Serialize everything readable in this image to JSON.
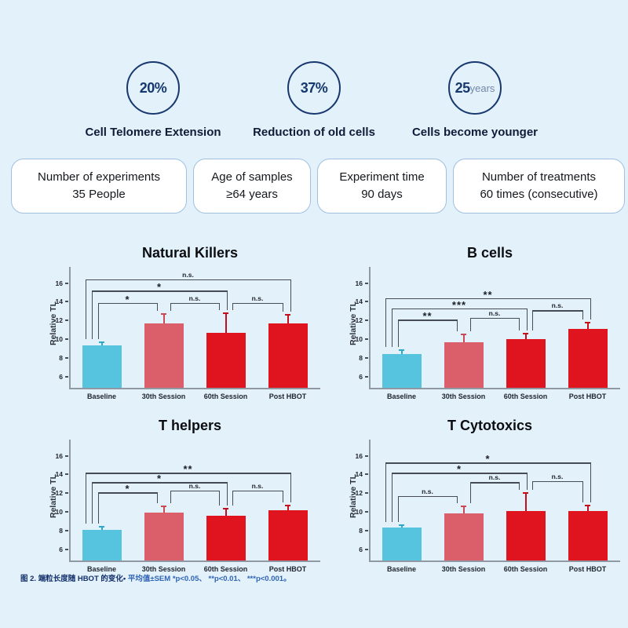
{
  "page": {
    "background": "#e3f1fb"
  },
  "stats": {
    "circle_border_color": "#16386e",
    "items": [
      {
        "value": "20%",
        "suffix": "",
        "label": "Cell Telomere Extension"
      },
      {
        "value": "37%",
        "suffix": "",
        "label": "Reduction of old cells"
      },
      {
        "value": "25",
        "suffix": "years",
        "label": "Cells become younger"
      }
    ]
  },
  "cards": [
    {
      "title": "Number of experiments",
      "value": "35 People"
    },
    {
      "title": "Age of samples",
      "value": "≥64 years"
    },
    {
      "title": "Experiment time",
      "value": "90 days"
    },
    {
      "title": "Number of treatments",
      "value": "60 times (consecutive)"
    }
  ],
  "chart_style": {
    "bar_colors": [
      "#56c3df",
      "#da5f6a",
      "#e0141f",
      "#e0141f"
    ],
    "err_colors": [
      "#2fa9cb",
      "#c94955",
      "#c40f1b",
      "#c40f1b"
    ],
    "axis_color": "#9099a3",
    "bracket_color": "#454c55"
  },
  "chart_data": [
    {
      "type": "bar",
      "title": "Natural Killers",
      "ylabel": "Relative TL",
      "categories": [
        "Baseline",
        "30th Session",
        "60th Session",
        "Post HBOT"
      ],
      "values": [
        9.3,
        11.7,
        10.7,
        11.7
      ],
      "sem": [
        0.35,
        1.0,
        2.1,
        0.95
      ],
      "yticks": [
        6,
        8,
        10,
        12,
        14,
        16
      ],
      "ylim": [
        4.8,
        17.4
      ],
      "grid": false,
      "significance": [
        {
          "pair": [
            0,
            1
          ],
          "label": "*",
          "y": 13.9,
          "dx_from": -5,
          "dx_to": -8
        },
        {
          "pair": [
            1,
            2
          ],
          "label": "n.s.",
          "y": 13.9,
          "dx_from": 8,
          "dx_to": -8
        },
        {
          "pair": [
            2,
            3
          ],
          "label": "n.s.",
          "y": 13.9,
          "dx_from": 8,
          "dx_to": -6
        },
        {
          "pair": [
            0,
            2
          ],
          "label": "*",
          "y": 15.2,
          "dx_from": -13,
          "dx_to": 2
        },
        {
          "pair": [
            0,
            3
          ],
          "label": "n.s.",
          "y": 16.4,
          "dx_from": -21,
          "dx_to": 4
        }
      ]
    },
    {
      "type": "bar",
      "title": "B cells",
      "ylabel": "Relative TL",
      "categories": [
        "Baseline",
        "30th Session",
        "60th Session",
        "Post HBOT"
      ],
      "values": [
        8.4,
        9.7,
        10.0,
        11.1
      ],
      "sem": [
        0.4,
        0.8,
        0.6,
        0.7
      ],
      "yticks": [
        6,
        8,
        10,
        12,
        14,
        16
      ],
      "ylim": [
        4.8,
        17.4
      ],
      "grid": false,
      "significance": [
        {
          "pair": [
            0,
            1
          ],
          "label": "**",
          "y": 12.1,
          "dx_from": -5,
          "dx_to": -8
        },
        {
          "pair": [
            1,
            2
          ],
          "label": "n.s.",
          "y": 12.3,
          "dx_from": 8,
          "dx_to": -8
        },
        {
          "pair": [
            2,
            3
          ],
          "label": "n.s.",
          "y": 13.1,
          "dx_from": 8,
          "dx_to": -6
        },
        {
          "pair": [
            0,
            2
          ],
          "label": "***",
          "y": 13.3,
          "dx_from": -13,
          "dx_to": 2
        },
        {
          "pair": [
            0,
            3
          ],
          "label": "**",
          "y": 14.4,
          "dx_from": -21,
          "dx_to": 4
        }
      ]
    },
    {
      "type": "bar",
      "title": "T helpers",
      "ylabel": "Relative TL",
      "categories": [
        "Baseline",
        "30th Session",
        "60th Session",
        "Post HBOT"
      ],
      "values": [
        8.1,
        9.9,
        9.6,
        10.2
      ],
      "sem": [
        0.35,
        0.7,
        0.75,
        0.5
      ],
      "yticks": [
        6,
        8,
        10,
        12,
        14,
        16
      ],
      "ylim": [
        4.8,
        17.4
      ],
      "grid": false,
      "significance": [
        {
          "pair": [
            0,
            1
          ],
          "label": "*",
          "y": 12.1,
          "dx_from": -5,
          "dx_to": -8
        },
        {
          "pair": [
            1,
            2
          ],
          "label": "n.s.",
          "y": 12.3,
          "dx_from": 8,
          "dx_to": -8
        },
        {
          "pair": [
            2,
            3
          ],
          "label": "n.s.",
          "y": 12.3,
          "dx_from": 8,
          "dx_to": -6
        },
        {
          "pair": [
            0,
            2
          ],
          "label": "*",
          "y": 13.2,
          "dx_from": -13,
          "dx_to": 2
        },
        {
          "pair": [
            0,
            3
          ],
          "label": "**",
          "y": 14.2,
          "dx_from": -21,
          "dx_to": 4
        }
      ]
    },
    {
      "type": "bar",
      "title": "T Cytotoxics",
      "ylabel": "Relative TL",
      "categories": [
        "Baseline",
        "30th Session",
        "60th Session",
        "Post HBOT"
      ],
      "values": [
        8.3,
        9.8,
        10.1,
        10.1
      ],
      "sem": [
        0.3,
        0.8,
        1.9,
        0.6
      ],
      "yticks": [
        6,
        8,
        10,
        12,
        14,
        16
      ],
      "ylim": [
        4.8,
        17.4
      ],
      "grid": false,
      "significance": [
        {
          "pair": [
            0,
            1
          ],
          "label": "n.s.",
          "y": 11.7,
          "dx_from": -5,
          "dx_to": -8
        },
        {
          "pair": [
            1,
            2
          ],
          "label": "n.s.",
          "y": 13.2,
          "dx_from": 8,
          "dx_to": -8
        },
        {
          "pair": [
            2,
            3
          ],
          "label": "n.s.",
          "y": 13.3,
          "dx_from": 8,
          "dx_to": -6
        },
        {
          "pair": [
            0,
            2
          ],
          "label": "*",
          "y": 14.2,
          "dx_from": -13,
          "dx_to": 2
        },
        {
          "pair": [
            0,
            3
          ],
          "label": "*",
          "y": 15.3,
          "dx_from": -21,
          "dx_to": 4
        }
      ]
    }
  ],
  "caption": {
    "zh": "图 2. 端粒长度随 HBOT 的变化•",
    "stats": " 平均值±SEM *p<0.05、 **p<0.01、 ***p<0.001。"
  }
}
